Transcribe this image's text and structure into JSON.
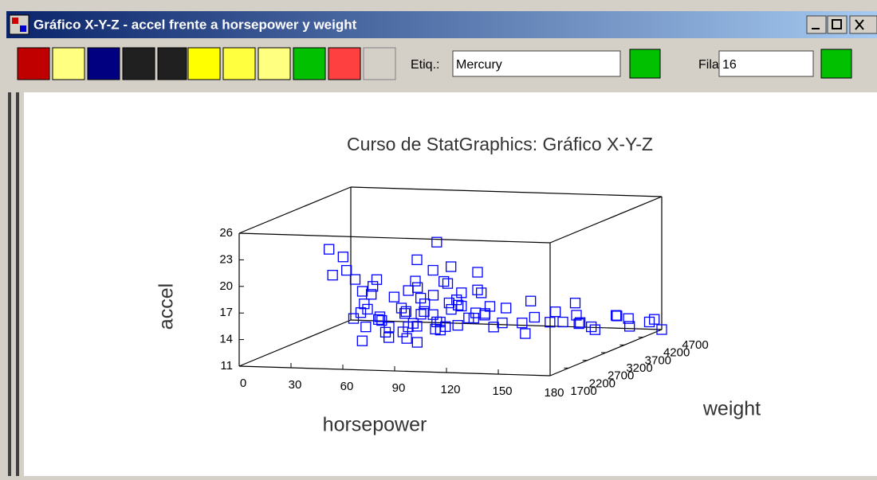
{
  "window": {
    "title": "Gráfico X-Y-Z - accel frente a horsepower y weight"
  },
  "toolbar": {
    "label_field": "Etiq.:",
    "label_value": "Mercury",
    "row_field": "Fila:",
    "row_value": "16"
  },
  "chart_data": {
    "type": "scatter3d",
    "title": "Curso de StatGraphics: Gráfico X-Y-Z",
    "x_label": "horsepower",
    "y_label": "weight",
    "z_label": "accel",
    "xlim": [
      0,
      180
    ],
    "xticks": [
      0,
      30,
      60,
      90,
      120,
      150,
      180
    ],
    "ylim": [
      1700,
      4700
    ],
    "yticks": [
      1700,
      2200,
      2700,
      3200,
      3700,
      4200,
      4700
    ],
    "zlim": [
      11,
      26
    ],
    "zticks": [
      11,
      14,
      17,
      20,
      23,
      26
    ],
    "grid": false,
    "series": [
      {
        "color": "#0000ff",
        "x": [
          90,
          95,
          88,
          100,
          110,
          105,
          85,
          75,
          70,
          68,
          65,
          72,
          80,
          92,
          97,
          150,
          140,
          145,
          130,
          120,
          115,
          125,
          100,
          98,
          88,
          86,
          84,
          150,
          160,
          175,
          165,
          110,
          110,
          95,
          90,
          88,
          78,
          75,
          67,
          67,
          63,
          60,
          88,
          90,
          105,
          110,
          97,
          95,
          110,
          150,
          167,
          170,
          140,
          150,
          180,
          180,
          145,
          130,
          115,
          100,
          90,
          84,
          70,
          69,
          58,
          52,
          53,
          65,
          75,
          95,
          105,
          120,
          129,
          139,
          88,
          86,
          92,
          112,
          98,
          100,
          107,
          110,
          93,
          72,
          76,
          81,
          83,
          96,
          102,
          71
        ],
        "y": [
          2200,
          2500,
          2100,
          2600,
          2900,
          2800,
          2300,
          2000,
          1900,
          1850,
          1800,
          1950,
          2150,
          2400,
          2600,
          4200,
          3900,
          4100,
          3600,
          3300,
          3100,
          3500,
          2700,
          2650,
          2350,
          2250,
          2200,
          4300,
          4400,
          4600,
          4500,
          3000,
          3200,
          2500,
          2300,
          2400,
          2100,
          2050,
          1950,
          1900,
          1850,
          1800,
          2500,
          2300,
          2700,
          3100,
          2800,
          2600,
          2950,
          3800,
          4100,
          4300,
          3700,
          3900,
          4700,
          4500,
          4000,
          3500,
          3200,
          2900,
          2400,
          2250,
          2000,
          1900,
          1800,
          1700,
          1750,
          1950,
          2150,
          2600,
          2800,
          3200,
          3400,
          3600,
          2600,
          2500,
          2700,
          3100,
          2850,
          2750,
          2900,
          3000,
          2600,
          2100,
          2200,
          2300,
          2350,
          2650,
          2850,
          2100
        ],
        "z": [
          15.5,
          16,
          17,
          14.5,
          15,
          18,
          19,
          16.5,
          17.5,
          14,
          21,
          20,
          18.5,
          16.5,
          15,
          12,
          13,
          12.5,
          14,
          15.5,
          16,
          13.5,
          17,
          19.5,
          20,
          15,
          14.5,
          11.5,
          13,
          12,
          12.5,
          18,
          15,
          21,
          22.5,
          13,
          14,
          16,
          18,
          19.5,
          16.5,
          22,
          16,
          15,
          14.5,
          17.5,
          19,
          24,
          15.5,
          14,
          13.5,
          12,
          14.5,
          13,
          11,
          12.5,
          15,
          16,
          13.5,
          17,
          18,
          16.5,
          19,
          15.5,
          23.5,
          24.5,
          21.5,
          17,
          14.5,
          15,
          16.5,
          14,
          12.5,
          13.5,
          17,
          19,
          14,
          15,
          16,
          21,
          15,
          20,
          18,
          16,
          15,
          17,
          13.5,
          14,
          16.5,
          20.5
        ]
      }
    ]
  }
}
